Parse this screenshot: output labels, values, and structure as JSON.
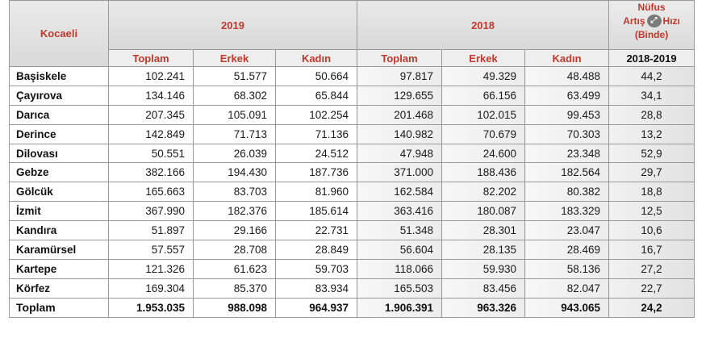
{
  "header": {
    "region": "Kocaeli",
    "year_2019": "2019",
    "year_2018": "2018",
    "rate_line1": "Nüfus",
    "rate_line2a": "Artış",
    "rate_line2b": "Hızı",
    "rate_line3": "(Binde)",
    "rate_years": "2018-2019",
    "toplam": "Toplam",
    "erkek": "Erkek",
    "kadin": "Kadın",
    "expand_icon": "expand-icon"
  },
  "rows": [
    {
      "name": "Başiskele",
      "t19": "102.241",
      "e19": "51.577",
      "k19": "50.664",
      "t18": "97.817",
      "e18": "49.329",
      "k18": "48.488",
      "rate": "44,2"
    },
    {
      "name": "Çayırova",
      "t19": "134.146",
      "e19": "68.302",
      "k19": "65.844",
      "t18": "129.655",
      "e18": "66.156",
      "k18": "63.499",
      "rate": "34,1"
    },
    {
      "name": "Darıca",
      "t19": "207.345",
      "e19": "105.091",
      "k19": "102.254",
      "t18": "201.468",
      "e18": "102.015",
      "k18": "99.453",
      "rate": "28,8"
    },
    {
      "name": "Derince",
      "t19": "142.849",
      "e19": "71.713",
      "k19": "71.136",
      "t18": "140.982",
      "e18": "70.679",
      "k18": "70.303",
      "rate": "13,2"
    },
    {
      "name": "Dilovası",
      "t19": "50.551",
      "e19": "26.039",
      "k19": "24.512",
      "t18": "47.948",
      "e18": "24.600",
      "k18": "23.348",
      "rate": "52,9"
    },
    {
      "name": "Gebze",
      "t19": "382.166",
      "e19": "194.430",
      "k19": "187.736",
      "t18": "371.000",
      "e18": "188.436",
      "k18": "182.564",
      "rate": "29,7"
    },
    {
      "name": "Gölcük",
      "t19": "165.663",
      "e19": "83.703",
      "k19": "81.960",
      "t18": "162.584",
      "e18": "82.202",
      "k18": "80.382",
      "rate": "18,8"
    },
    {
      "name": "İzmit",
      "t19": "367.990",
      "e19": "182.376",
      "k19": "185.614",
      "t18": "363.416",
      "e18": "180.087",
      "k18": "183.329",
      "rate": "12,5"
    },
    {
      "name": "Kandıra",
      "t19": "51.897",
      "e19": "29.166",
      "k19": "22.731",
      "t18": "51.348",
      "e18": "28.301",
      "k18": "23.047",
      "rate": "10,6"
    },
    {
      "name": "Karamürsel",
      "t19": "57.557",
      "e19": "28.708",
      "k19": "28.849",
      "t18": "56.604",
      "e18": "28.135",
      "k18": "28.469",
      "rate": "16,7"
    },
    {
      "name": "Kartepe",
      "t19": "121.326",
      "e19": "61.623",
      "k19": "59.703",
      "t18": "118.066",
      "e18": "59.930",
      "k18": "58.136",
      "rate": "27,2"
    },
    {
      "name": "Körfez",
      "t19": "169.304",
      "e19": "85.370",
      "k19": "83.934",
      "t18": "165.503",
      "e18": "83.456",
      "k18": "82.047",
      "rate": "22,7"
    }
  ],
  "total": {
    "name": "Toplam",
    "t19": "1.953.035",
    "e19": "988.098",
    "k19": "964.937",
    "t18": "1.906.391",
    "e18": "963.326",
    "k18": "943.065",
    "rate": "24,2"
  }
}
